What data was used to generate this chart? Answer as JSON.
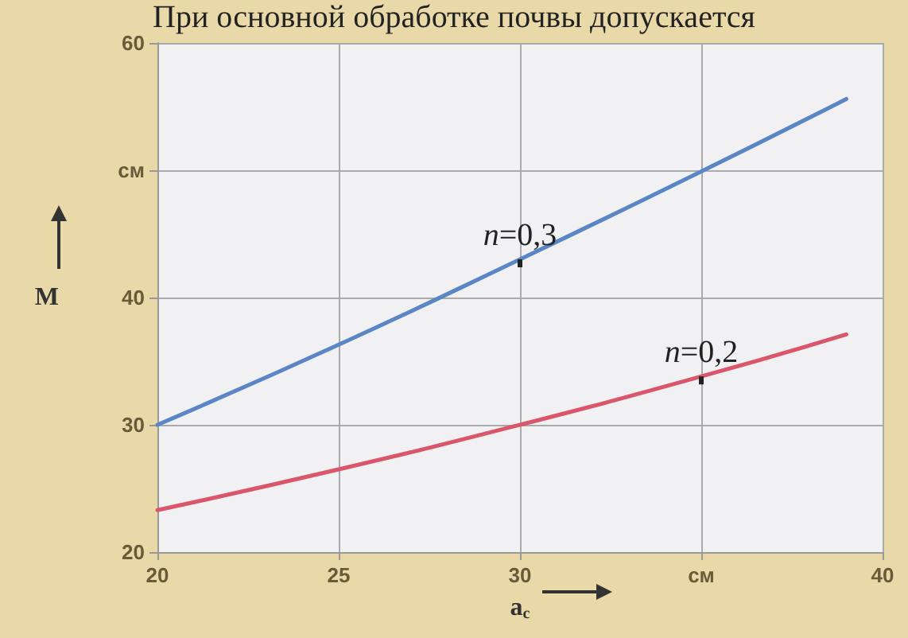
{
  "chart_data": {
    "type": "line",
    "annotations": [
      "При основной обработке почвы допускается"
    ],
    "xlabel": "a$_{c}$",
    "ylabel": "M",
    "x": [
      20,
      25,
      30,
      35,
      39
    ],
    "series": [
      {
        "name": "n=0,3",
        "color": "#5b86c5",
        "values": [
          30,
          36.3,
          43,
          49.9,
          55.6
        ]
      },
      {
        "name": "n=0,2",
        "color": "#d9566b",
        "values": [
          23.3,
          26.5,
          30,
          33.8,
          37.1
        ]
      }
    ],
    "xlim": [
      20,
      40
    ],
    "xticks": [
      20,
      25,
      30,
      {
        "value": 35,
        "label": "см"
      },
      40
    ],
    "ylim": [
      20,
      60
    ],
    "yticks": [
      20,
      30,
      40,
      {
        "value": 50,
        "label": "см"
      },
      60
    ],
    "grid": true,
    "marker": "none",
    "line_style": "solid",
    "legend": false
  }
}
